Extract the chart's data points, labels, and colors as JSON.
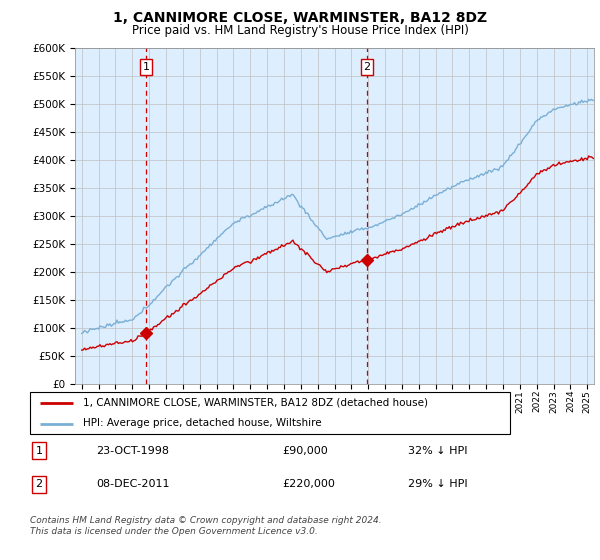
{
  "title": "1, CANNIMORE CLOSE, WARMINSTER, BA12 8DZ",
  "subtitle": "Price paid vs. HM Land Registry's House Price Index (HPI)",
  "legend_line1": "1, CANNIMORE CLOSE, WARMINSTER, BA12 8DZ (detached house)",
  "legend_line2": "HPI: Average price, detached house, Wiltshire",
  "table_rows": [
    {
      "num": "1",
      "date": "23-OCT-1998",
      "price": "£90,000",
      "hpi": "32% ↓ HPI"
    },
    {
      "num": "2",
      "date": "08-DEC-2011",
      "price": "£220,000",
      "hpi": "29% ↓ HPI"
    }
  ],
  "footnote": "Contains HM Land Registry data © Crown copyright and database right 2024.\nThis data is licensed under the Open Government Licence v3.0.",
  "sale1_date": 1998.81,
  "sale1_price": 90000,
  "sale2_date": 2011.93,
  "sale2_price": 220000,
  "ylim": [
    0,
    600000
  ],
  "yticks": [
    0,
    50000,
    100000,
    150000,
    200000,
    250000,
    300000,
    350000,
    400000,
    450000,
    500000,
    550000,
    600000
  ],
  "red_color": "#cc0000",
  "blue_color": "#7bafd4",
  "bg_fill": "#ddeeff",
  "vline_color": "#cc0000",
  "grid_color": "#c0c0c0",
  "table_border_color": "#cc0000",
  "white": "#ffffff",
  "black": "#000000"
}
